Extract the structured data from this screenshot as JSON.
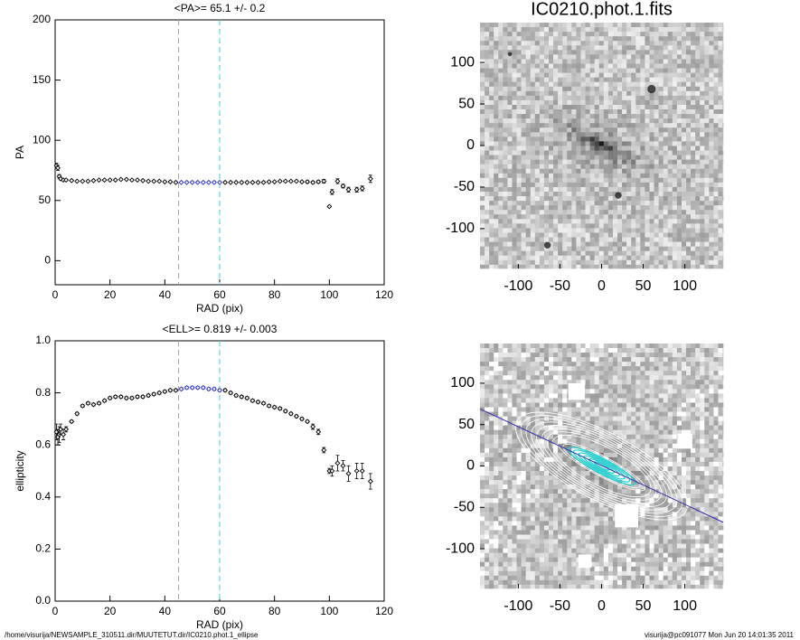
{
  "chart_data": [
    {
      "type": "scatter",
      "title": "<PA>=  65.1 +/-   0.2",
      "x_label": "RAD (pix)",
      "y_label": "PA",
      "xlim": [
        0,
        120
      ],
      "ylim": [
        -20,
        200
      ],
      "xticks": [
        0,
        20,
        40,
        60,
        80,
        100,
        120
      ],
      "yticks": [
        0,
        50,
        100,
        150,
        200
      ],
      "vlines": [
        45,
        60
      ],
      "vline_color": "#40d0e0",
      "series": [
        {
          "color": "#000000",
          "x": [
            0.5,
            1,
            1.5,
            2,
            3,
            4,
            6,
            8,
            10,
            12,
            14,
            16,
            18,
            20,
            22,
            24,
            26,
            28,
            30,
            32,
            34,
            36,
            38,
            40,
            42,
            44,
            62,
            64,
            66,
            68,
            70,
            72,
            74,
            76,
            78,
            80,
            82,
            84,
            86,
            88,
            90,
            92,
            94,
            96,
            98,
            100,
            101,
            103,
            105,
            107,
            110,
            112,
            115
          ],
          "values": [
            79,
            77,
            70,
            68,
            67,
            67,
            66.5,
            66,
            66,
            66,
            66.5,
            67,
            67,
            67,
            67,
            67.5,
            67.5,
            67,
            67,
            66.5,
            66,
            66,
            66,
            65.5,
            65.5,
            65,
            65,
            65,
            65,
            65,
            65,
            65,
            65,
            65,
            65.5,
            65.5,
            66,
            66,
            66,
            66,
            65.5,
            65.5,
            65,
            65.5,
            66,
            45,
            57,
            66,
            62,
            59,
            59,
            60,
            68
          ],
          "errors": [
            2,
            2,
            1.5,
            1,
            0.5,
            0.5,
            0.5,
            0.5,
            0.5,
            0.5,
            0.5,
            0.5,
            0.5,
            0.5,
            0.5,
            0.5,
            0.5,
            0.5,
            0.5,
            0.5,
            0.5,
            0.5,
            0.5,
            0.5,
            0.5,
            0.5,
            0.5,
            0.5,
            0.5,
            0.5,
            0.5,
            0.5,
            0.5,
            0.5,
            0.5,
            0.5,
            0.5,
            0.5,
            0.5,
            0.5,
            0.5,
            1,
            1,
            1,
            1.5,
            0.5,
            2,
            2,
            1.5,
            2,
            2,
            2,
            3
          ]
        },
        {
          "color": "#2830c0",
          "x": [
            46,
            48,
            50,
            52,
            54,
            56,
            58,
            60
          ],
          "values": [
            65,
            65,
            65,
            65,
            65,
            65,
            65,
            65
          ],
          "errors": [
            0.5,
            0.5,
            0.5,
            0.5,
            0.5,
            0.5,
            0.5,
            0.5
          ]
        }
      ]
    },
    {
      "type": "scatter",
      "title": "<ELL>= 0.819 +/-  0.003",
      "x_label": "RAD (pix)",
      "y_label": "ellipticity",
      "xlim": [
        0,
        120
      ],
      "ylim": [
        0,
        1
      ],
      "xticks": [
        0,
        20,
        40,
        60,
        80,
        100,
        120
      ],
      "yticks": [
        {
          "value": 0,
          "label": "0.0"
        },
        0.2,
        0.4,
        0.6,
        0.8,
        {
          "value": 1,
          "label": "1.0"
        }
      ],
      "vlines": [
        45,
        60
      ],
      "vline_color": "#40d0e0",
      "series": [
        {
          "color": "#000000",
          "x": [
            0.5,
            1,
            1.5,
            2,
            3,
            4,
            6,
            8,
            10,
            12,
            14,
            16,
            18,
            20,
            22,
            24,
            26,
            28,
            30,
            32,
            34,
            36,
            38,
            40,
            42,
            44,
            62,
            64,
            66,
            68,
            70,
            72,
            74,
            76,
            78,
            80,
            82,
            84,
            86,
            88,
            90,
            92,
            94,
            96,
            98,
            100,
            101,
            103,
            105,
            107,
            110,
            112,
            115
          ],
          "values": [
            0.65,
            0.63,
            0.64,
            0.66,
            0.64,
            0.66,
            0.69,
            0.72,
            0.75,
            0.76,
            0.755,
            0.76,
            0.77,
            0.78,
            0.785,
            0.785,
            0.78,
            0.78,
            0.785,
            0.785,
            0.79,
            0.795,
            0.8,
            0.805,
            0.81,
            0.81,
            0.81,
            0.8,
            0.79,
            0.785,
            0.78,
            0.77,
            0.765,
            0.76,
            0.75,
            0.745,
            0.74,
            0.73,
            0.72,
            0.71,
            0.7,
            0.69,
            0.67,
            0.65,
            0.58,
            0.5,
            0.5,
            0.53,
            0.52,
            0.49,
            0.5,
            0.5,
            0.46
          ],
          "errors": [
            0.03,
            0.03,
            0.03,
            0.02,
            0.02,
            0.01,
            0.005,
            0.005,
            0.005,
            0.005,
            0.005,
            0.005,
            0.005,
            0.005,
            0.005,
            0.005,
            0.005,
            0.005,
            0.005,
            0.005,
            0.005,
            0.005,
            0.005,
            0.005,
            0.005,
            0.005,
            0.005,
            0.005,
            0.005,
            0.005,
            0.005,
            0.005,
            0.005,
            0.005,
            0.005,
            0.005,
            0.005,
            0.005,
            0.005,
            0.005,
            0.005,
            0.005,
            0.01,
            0.01,
            0.01,
            0.01,
            0.02,
            0.03,
            0.02,
            0.03,
            0.03,
            0.03,
            0.03
          ]
        },
        {
          "color": "#2830c0",
          "x": [
            46,
            48,
            50,
            52,
            54,
            56,
            58,
            60
          ],
          "values": [
            0.815,
            0.82,
            0.82,
            0.82,
            0.82,
            0.815,
            0.815,
            0.81
          ],
          "errors": [
            0.005,
            0.005,
            0.005,
            0.005,
            0.005,
            0.005,
            0.005,
            0.005
          ]
        }
      ]
    },
    {
      "type": "image",
      "title": "IC0210.phot.1.fits",
      "xlim": [
        -146,
        146
      ],
      "ylim": [
        -148,
        148
      ],
      "xticks": [
        -100,
        -50,
        0,
        50,
        100
      ],
      "yticks": [
        -100,
        -50,
        0,
        50,
        100
      ],
      "contours": false
    },
    {
      "type": "image",
      "xlim": [
        -146,
        146
      ],
      "ylim": [
        -148,
        148
      ],
      "xticks": [
        -100,
        -50,
        0,
        50,
        100
      ],
      "yticks": [
        -100,
        -50,
        0,
        50,
        100
      ],
      "contours": true
    }
  ],
  "footer": {
    "left": "/home/visurija/NEWSAMPLE_310511.dir/MUUTETUT.dir/IC0210.phot.1_ellipse",
    "right": "visurija@pc091077  Mon Jun 20 14:01:35 2011"
  }
}
